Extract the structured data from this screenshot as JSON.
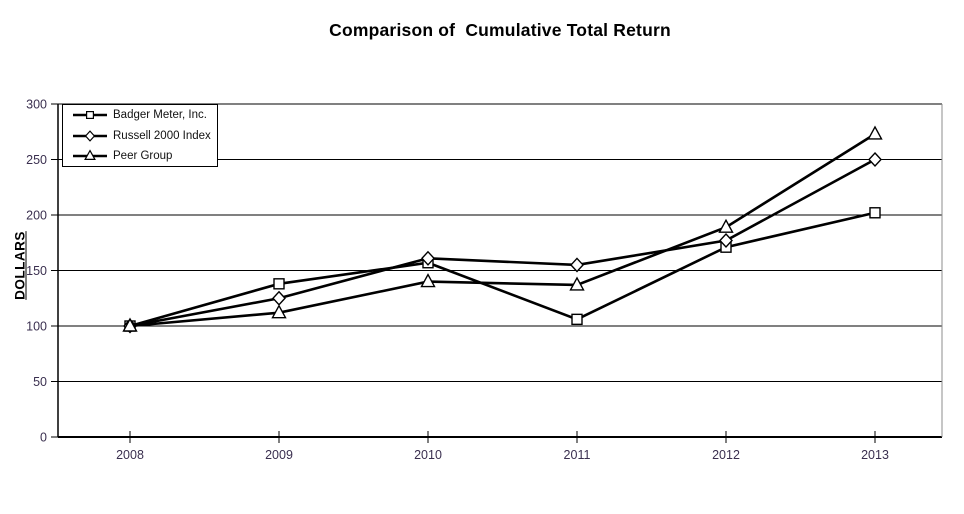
{
  "chart_data": {
    "type": "line",
    "title": "Comparison of  Cumulative Total Return",
    "ylabel": "DOLLARS",
    "xlabel": "",
    "categories": [
      "2008",
      "2009",
      "2010",
      "2011",
      "2012",
      "2013"
    ],
    "y_ticks": [
      0,
      50,
      100,
      150,
      200,
      250,
      300
    ],
    "ylim": [
      0,
      300
    ],
    "grid": "horizontal",
    "legend_position": "top-left-inside",
    "series": [
      {
        "name": "Badger Meter, Inc.",
        "marker": "square",
        "values": [
          100,
          138,
          157,
          106,
          171,
          202
        ]
      },
      {
        "name": "Russell 2000 Index",
        "marker": "diamond",
        "values": [
          100,
          125,
          161,
          155,
          177,
          250
        ]
      },
      {
        "name": "Peer Group",
        "marker": "triangle",
        "values": [
          100,
          112,
          140,
          137,
          189,
          273
        ]
      }
    ]
  },
  "colors": {
    "line": "#000000",
    "marker_fill": "#ffffff",
    "marker_stroke": "#000000",
    "tick_label": "#3a2f4f",
    "axis": "#000000",
    "gridline": "#000000",
    "plot_border_right": "#8c8c8c",
    "title": "#000000",
    "legend_border": "#000000",
    "background": "#ffffff"
  }
}
